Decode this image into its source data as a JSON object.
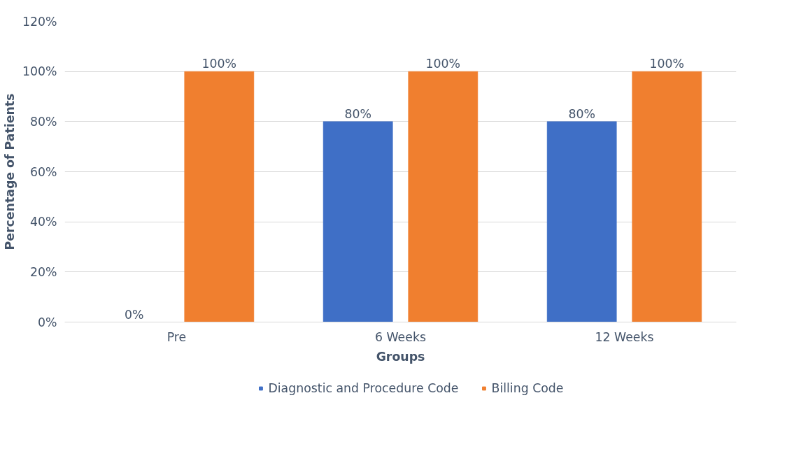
{
  "chart_data": {
    "type": "bar",
    "xlabel": "Groups",
    "ylabel": "Percentage of Patients",
    "categories": [
      "Pre",
      "6 Weeks",
      "12 Weeks"
    ],
    "series": [
      {
        "name": "Diagnostic and Procedure Code",
        "color": "#3f6fc6",
        "values": [
          0,
          80,
          80
        ],
        "value_labels": [
          "0%",
          "80%",
          "80%"
        ]
      },
      {
        "name": "Billing Code",
        "color": "#f07f2f",
        "values": [
          100,
          100,
          100
        ],
        "value_labels": [
          "100%",
          "100%",
          "100%"
        ]
      }
    ],
    "ylim": [
      0,
      120
    ],
    "yticks": [
      {
        "value": 0,
        "label": "0%"
      },
      {
        "value": 20,
        "label": "20%"
      },
      {
        "value": 40,
        "label": "40%"
      },
      {
        "value": 60,
        "label": "60%"
      },
      {
        "value": 80,
        "label": "80%"
      },
      {
        "value": 100,
        "label": "100%"
      },
      {
        "value": 120,
        "label": "120%"
      }
    ],
    "grid": "y",
    "legend": "bottom"
  }
}
